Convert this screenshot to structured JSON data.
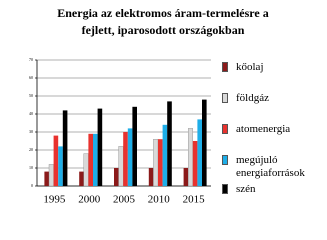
{
  "chart_data": {
    "type": "bar",
    "title": [
      "Energia az elektromos áram-termelésre a",
      "fejlett, iparosodott országokban"
    ],
    "categories": [
      "1995",
      "2000",
      "2005",
      "2010",
      "2015"
    ],
    "series": [
      {
        "name": "kőolaj",
        "color": "#8b1a1a",
        "values": [
          8,
          8,
          10,
          10,
          10
        ]
      },
      {
        "name": "földgáz",
        "color": "#d9d9d9",
        "values": [
          12,
          18,
          22,
          26,
          32
        ]
      },
      {
        "name": "atomenergia",
        "color": "#e8322e",
        "values": [
          28,
          29,
          30,
          26,
          25
        ]
      },
      {
        "name": "megújuló energiaforrások",
        "color": "#1eaee8",
        "values": [
          22,
          29,
          32,
          34,
          37
        ]
      },
      {
        "name": "szén",
        "color": "#000000",
        "values": [
          42,
          43,
          44,
          47,
          48
        ]
      }
    ],
    "ylim": [
      0,
      70
    ],
    "yticks": [
      0,
      10,
      20,
      30,
      40,
      50,
      60,
      70
    ],
    "grid": true,
    "legend": "right"
  }
}
